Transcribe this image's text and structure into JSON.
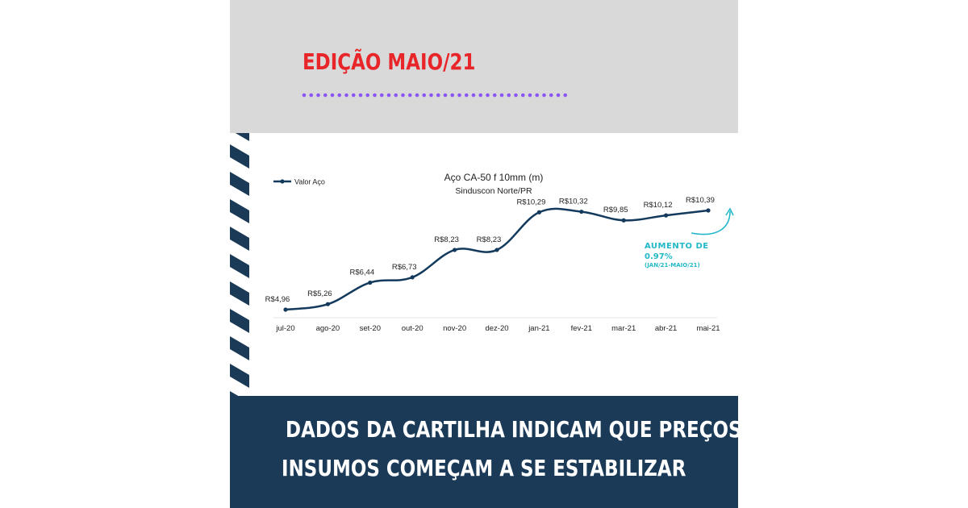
{
  "header": {
    "edition": "EDIÇÃO MAIO/21",
    "accent": "#e8262a",
    "dot_color": "#8b55f5"
  },
  "chart_data": {
    "type": "line",
    "title": "Aço CA-50 f 10mm (m)",
    "subtitle": "Sinduscon Norte/PR",
    "legend": "Valor Aço",
    "legend_position": "top-left",
    "categories": [
      "jul-20",
      "ago-20",
      "set-20",
      "out-20",
      "nov-20",
      "dez-20",
      "jan-21",
      "fev-21",
      "mar-21",
      "abr-21",
      "mai-21"
    ],
    "series": [
      {
        "name": "Valor Aço",
        "values": [
          4.96,
          5.26,
          6.44,
          6.73,
          8.23,
          8.23,
          10.29,
          10.32,
          9.85,
          10.12,
          10.39
        ],
        "labels": [
          "R$4,96",
          "R$5,26",
          "R$6,44",
          "R$6,73",
          "R$8,23",
          "R$8,23",
          "R$10,29",
          "R$10,32",
          "R$9,85",
          "R$10,12",
          "R$10,39"
        ],
        "color": "#133a5c"
      }
    ],
    "grid": false,
    "annotation": {
      "line1": "AUMENTO DE",
      "line2": "0.97%",
      "line3": "(JAN/21-MAIO/21)",
      "color": "#22b8c8"
    }
  },
  "footer": {
    "line1": "DADOS DA CARTILHA INDICAM QUE PREÇOS DOS",
    "line2": "INSUMOS COMEÇAM A SE ESTABILIZAR",
    "background": "#1b3a57"
  }
}
